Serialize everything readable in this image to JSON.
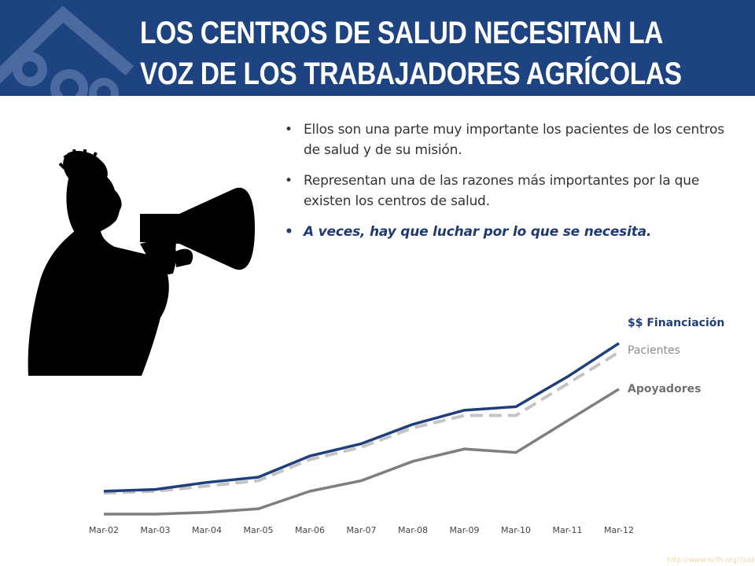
{
  "header": {
    "title_line1": "LOS CENTROS DE SALUD NECESITAN LA",
    "title_line2": "VOZ DE LOS TRABAJADORES AGRÍCOLAS"
  },
  "bullets": [
    {
      "text": "Ellos son una parte muy importante los pacientes de los centros de salud y de su misión.",
      "emphasis": false
    },
    {
      "text": "Representan una de las razones más importantes por la que existen los centros de salud.",
      "emphasis": false
    },
    {
      "text": "A veces, hay que luchar por lo que se necesita.",
      "emphasis": true
    }
  ],
  "colors": {
    "header_bg": "#1d4480",
    "financiacion": "#1f3f7a",
    "pacientes": "#c4c4c4",
    "apoyadores": "#7f7f7f"
  },
  "chart_data": {
    "type": "line",
    "categories": [
      "Mar-02",
      "Mar-03",
      "Mar-04",
      "Mar-05",
      "Mar-06",
      "Mar-07",
      "Mar-08",
      "Mar-09",
      "Mar-10",
      "Mar-11",
      "Mar-12"
    ],
    "ylim": [
      0,
      100
    ],
    "grid": false,
    "legend": "right-end labels",
    "series": [
      {
        "name": "$$ Financiación",
        "style": "solid",
        "values": [
          13,
          14,
          18,
          21,
          33,
          40,
          51,
          59,
          61,
          78,
          97
        ]
      },
      {
        "name": "Pacientes",
        "style": "dashed",
        "values": [
          12,
          13,
          16,
          19,
          31,
          38,
          49,
          56,
          56,
          74,
          92
        ]
      },
      {
        "name": "Apoyadores",
        "style": "solid",
        "values": [
          0,
          0,
          1,
          3,
          13,
          19,
          30,
          37,
          35,
          53,
          71
        ]
      }
    ]
  },
  "footer": {
    "url": "http://www.ncfh.org/?pid"
  }
}
